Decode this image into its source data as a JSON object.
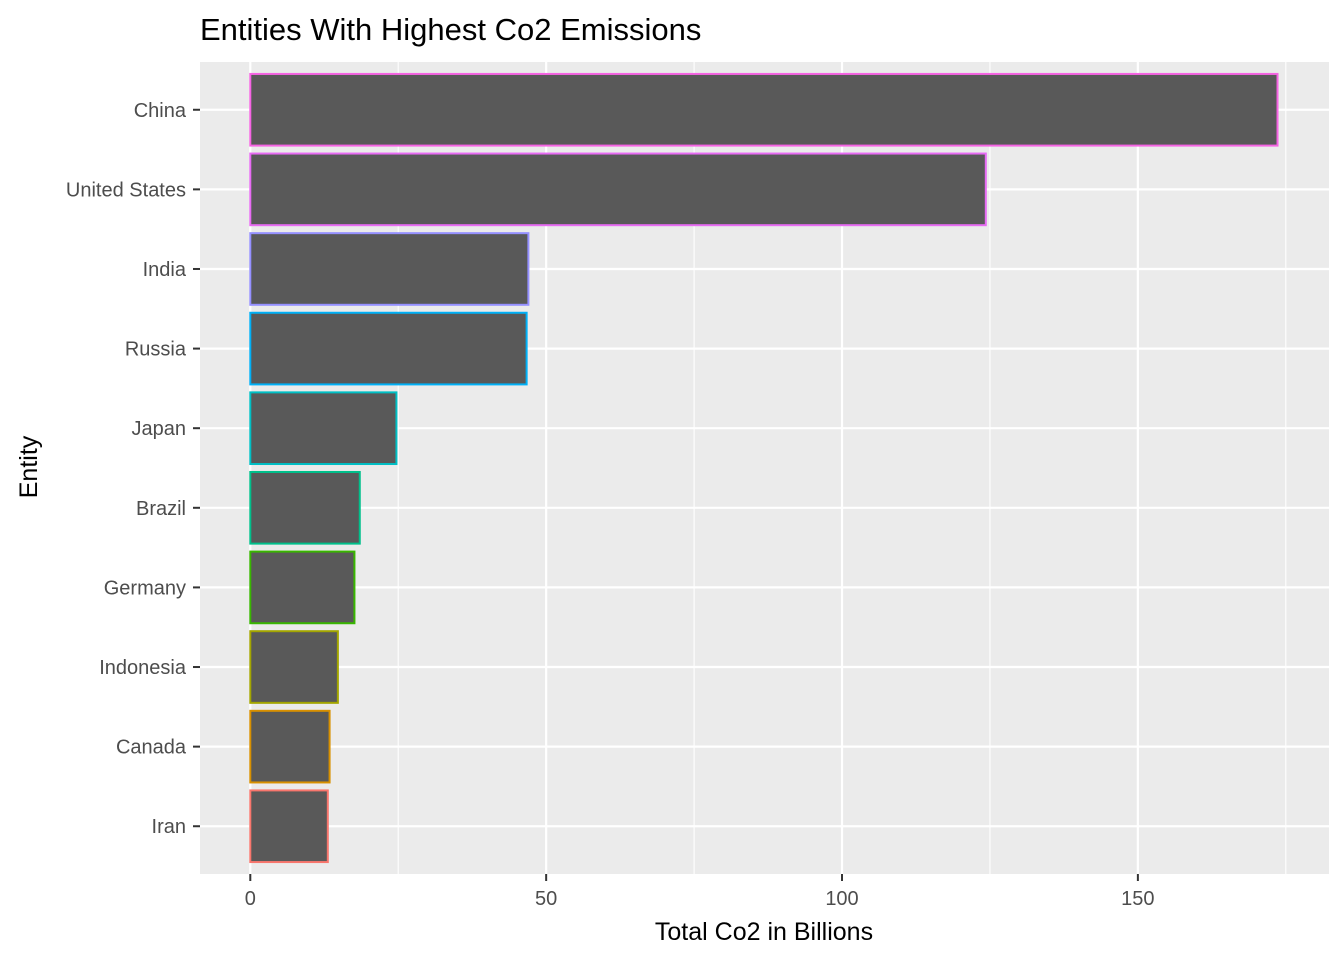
{
  "chart_data": {
    "type": "bar",
    "orientation": "horizontal",
    "title": "Entities With Highest Co2 Emissions",
    "xlabel": "Total Co2 in Billions",
    "ylabel": "Entity",
    "categories": [
      "China",
      "United States",
      "India",
      "Russia",
      "Japan",
      "Brazil",
      "Germany",
      "Indonesia",
      "Canada",
      "Iran"
    ],
    "values": [
      173.6,
      124.3,
      47.0,
      46.7,
      24.7,
      18.5,
      17.6,
      14.8,
      13.4,
      13.1
    ],
    "border_colors": [
      "#F564E3",
      "#E76BF3",
      "#9590FF",
      "#00B0F6",
      "#00BFC4",
      "#00C08B",
      "#39B600",
      "#A3A500",
      "#D89000",
      "#F8766D"
    ],
    "bar_fill": "#595959",
    "panel_background": "#EBEBEB",
    "gridline_color": "#FFFFFF",
    "xlim": [
      -8.5,
      182.3
    ],
    "x_ticks": [
      0,
      50,
      100,
      150
    ],
    "x_tick_labels": [
      "0",
      "50",
      "100",
      "150"
    ],
    "grid": true,
    "legend": "none"
  }
}
